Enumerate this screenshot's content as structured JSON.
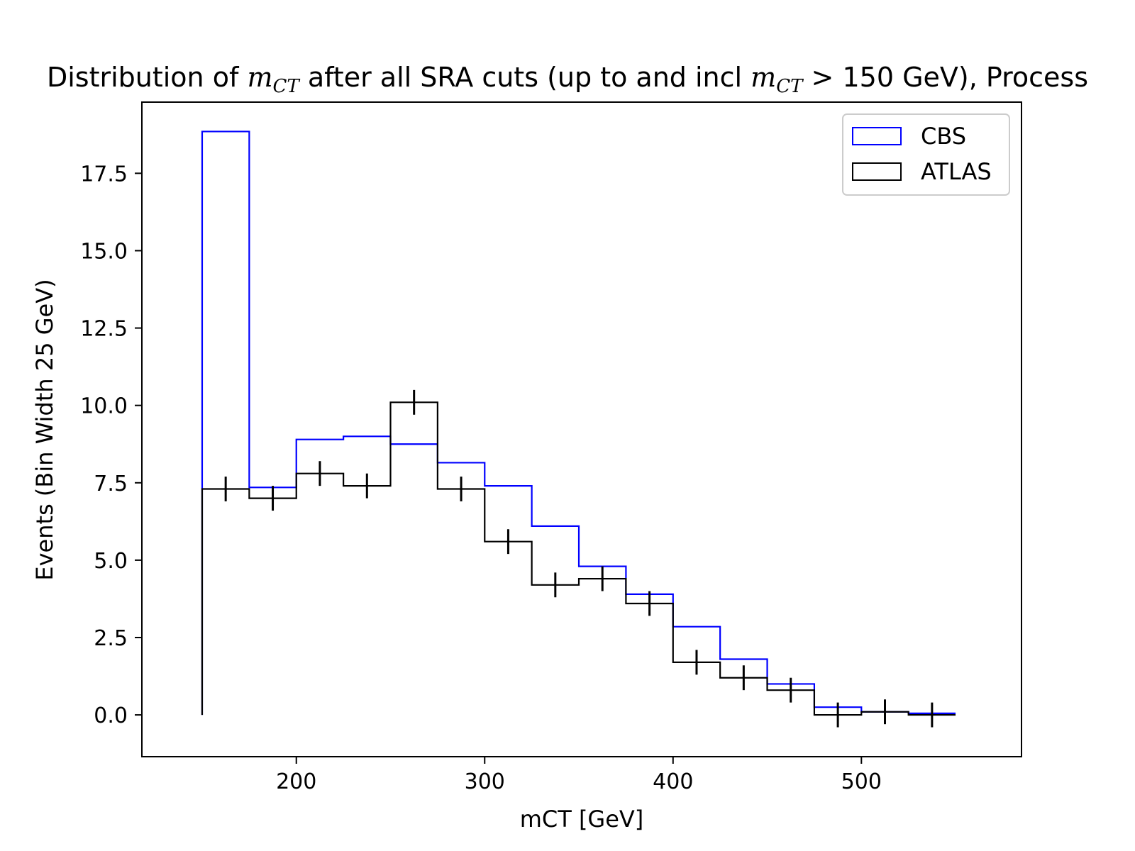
{
  "chart_data": {
    "type": "histogram",
    "title": {
      "prefix": "Distribution of ",
      "var1": "m",
      "sub1": "CT",
      "middle": " after all SRA cuts (up to and incl ",
      "var2": "m",
      "sub2": "CT",
      "cmp": " > 150 GeV), Process"
    },
    "xlabel": "mCT [GeV]",
    "ylabel": "Events (Bin Width 25 GeV)",
    "xlim": [
      118,
      585
    ],
    "ylim": [
      -1.35,
      19.8
    ],
    "xticks": [
      200,
      300,
      400,
      500
    ],
    "yticks": [
      0.0,
      2.5,
      5.0,
      7.5,
      10.0,
      12.5,
      15.0,
      17.5
    ],
    "ytick_labels": [
      "0.0",
      "2.5",
      "5.0",
      "7.5",
      "10.0",
      "12.5",
      "15.0",
      "17.5"
    ],
    "xtick_labels": [
      "200",
      "300",
      "400",
      "500"
    ],
    "bin_edges": [
      150,
      175,
      200,
      225,
      250,
      275,
      300,
      325,
      350,
      375,
      400,
      425,
      450,
      475,
      500,
      525,
      550
    ],
    "series": [
      {
        "name": "CBS",
        "color": "#0000ff",
        "style": "step",
        "values": [
          18.85,
          7.35,
          8.9,
          9.0,
          8.75,
          8.15,
          7.4,
          6.1,
          4.8,
          3.9,
          2.85,
          1.8,
          1.0,
          0.25,
          0.1,
          0.05
        ]
      },
      {
        "name": "ATLAS",
        "color": "#000000",
        "style": "step-errorbar",
        "values": [
          7.3,
          7.0,
          7.8,
          7.4,
          10.1,
          7.3,
          5.6,
          4.2,
          4.4,
          3.6,
          1.7,
          1.2,
          0.8,
          0.0,
          0.1,
          0.0
        ],
        "errors": [
          0.4,
          0.4,
          0.4,
          0.4,
          0.4,
          0.4,
          0.4,
          0.4,
          0.4,
          0.4,
          0.4,
          0.4,
          0.4,
          0.4,
          0.4,
          0.4
        ]
      }
    ],
    "legend_position": "top-right",
    "grid": false
  }
}
